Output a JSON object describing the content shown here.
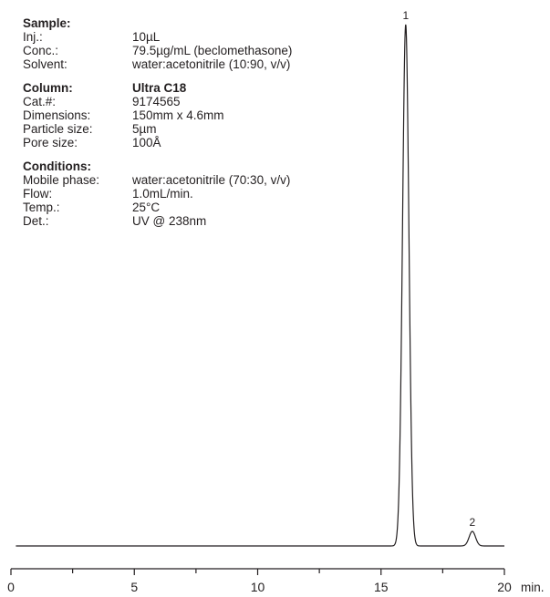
{
  "info": {
    "sample": {
      "heading": "Sample:",
      "rows": [
        {
          "label": "Inj.:",
          "value": "10µL"
        },
        {
          "label": "Conc.:",
          "value": "79.5µg/mL (beclomethasone)"
        },
        {
          "label": "Solvent:",
          "value": "water:acetonitrile (10:90, v/v)"
        }
      ]
    },
    "column": {
      "heading": "Column:",
      "heading_value": "Ultra C18",
      "rows": [
        {
          "label": "Cat.#:",
          "value": "9174565"
        },
        {
          "label": "Dimensions:",
          "value": "150mm x 4.6mm"
        },
        {
          "label": "Particle size:",
          "value": "5µm"
        },
        {
          "label": "Pore size:",
          "value": "100Å"
        }
      ]
    },
    "conditions": {
      "heading": "Conditions:",
      "rows": [
        {
          "label": "Mobile phase:",
          "value": "water:acetonitrile (70:30, v/v)"
        },
        {
          "label": "Flow:",
          "value": "1.0mL/min."
        },
        {
          "label": "Temp.:",
          "value": "25°C"
        },
        {
          "label": "Det.:",
          "value": "UV @ 238nm"
        }
      ]
    }
  },
  "chart_data": {
    "type": "line",
    "title": "",
    "xlabel": "min.",
    "ylabel": "",
    "xlim": [
      0,
      20
    ],
    "ylim": [
      0,
      1.0
    ],
    "x_ticks": [
      0,
      5,
      10,
      15,
      20
    ],
    "grid": false,
    "peaks": [
      {
        "label": "1",
        "retention_time": 16.0,
        "height": 1.0,
        "width_sigma": 0.13
      },
      {
        "label": "2",
        "retention_time": 18.7,
        "height": 0.028,
        "width_sigma": 0.13
      }
    ],
    "baseline_start": 0.2,
    "baseline_end": 20.0,
    "line_color": "#231f20"
  }
}
